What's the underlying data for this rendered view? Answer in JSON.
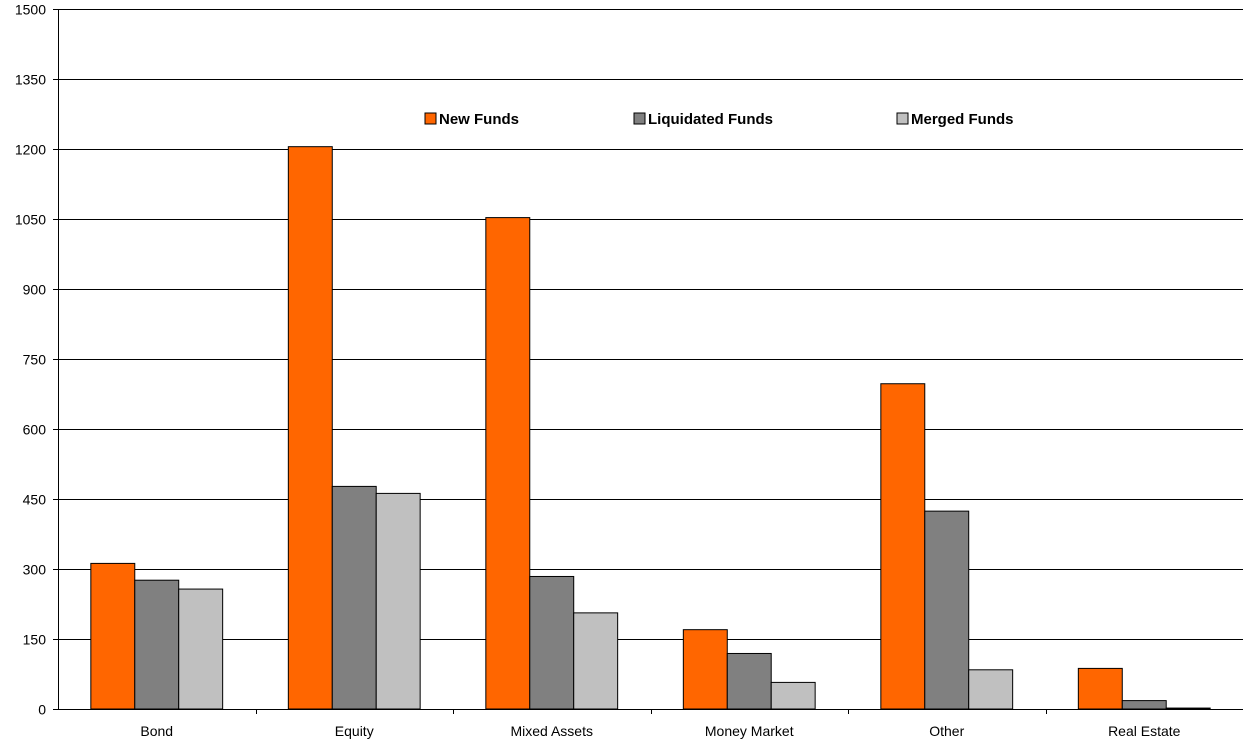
{
  "chart_data": {
    "type": "bar",
    "title": "",
    "xlabel": "",
    "ylabel": "",
    "categories": [
      "Bond",
      "Equity",
      "Mixed Assets",
      "Money Market",
      "Other",
      "Real Estate"
    ],
    "series": [
      {
        "name": "New Funds",
        "color": "#ff6600",
        "values": [
          312,
          1205,
          1053,
          170,
          697,
          87
        ]
      },
      {
        "name": "Liquidated Funds",
        "color": "#808080",
        "values": [
          276,
          477,
          284,
          119,
          424,
          18
        ]
      },
      {
        "name": "Merged Funds",
        "color": "#c0c0c0",
        "values": [
          257,
          462,
          206,
          57,
          84,
          2
        ]
      }
    ],
    "ylim": [
      0,
      1500
    ],
    "yticks": [
      0,
      150,
      300,
      450,
      600,
      750,
      900,
      1050,
      1200,
      1350,
      1500
    ],
    "grid": true,
    "legend_position": "top-center"
  }
}
